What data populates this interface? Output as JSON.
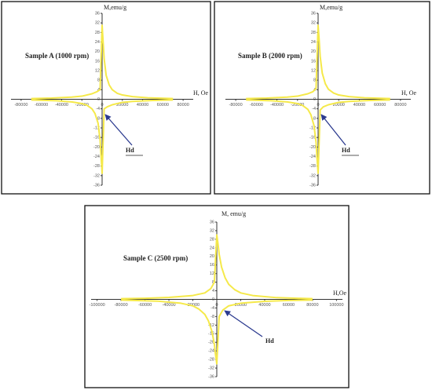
{
  "chart_data": [
    {
      "type": "line",
      "title": "Sample A (1000 rpm)",
      "x_label": "H, Oe",
      "y_label": "M,emu/g",
      "annotation": "Hd",
      "xlim": [
        -90000,
        90000
      ],
      "xticks": [
        -80000,
        -60000,
        -40000,
        -20000,
        0,
        20000,
        40000,
        60000,
        80000
      ],
      "ylim": [
        -36,
        36
      ],
      "yticks": [
        -36,
        -32,
        -28,
        -24,
        -20,
        -16,
        -12,
        -8,
        -4,
        0,
        4,
        8,
        12,
        16,
        20,
        24,
        28,
        32,
        36
      ],
      "series": [
        {
          "color": "#f5e94a",
          "x": [
            -70000,
            -50000,
            -30000,
            -20000,
            -10000,
            -5000,
            -2000,
            0,
            1000,
            2000,
            4000,
            7000,
            10000,
            15000,
            20000,
            30000,
            45000,
            70000
          ],
          "values": [
            0.3,
            0.5,
            0.9,
            1.3,
            2.3,
            3.2,
            4,
            31,
            24,
            17,
            10,
            6,
            4,
            2.5,
            1.8,
            1.1,
            0.6,
            0.3
          ]
        },
        {
          "color": "#f5e94a",
          "x": [
            -70000,
            -45000,
            -30000,
            -20000,
            -15000,
            -10000,
            -7000,
            -4000,
            -2000,
            -1000,
            0,
            2000,
            5000,
            10000,
            20000,
            30000,
            50000,
            70000
          ],
          "values": [
            -0.3,
            -0.6,
            -1.1,
            -1.8,
            -2.5,
            -4,
            -6,
            -10,
            -17,
            -24,
            -31,
            -4,
            -3.2,
            -2.3,
            -1.3,
            -0.9,
            -0.5,
            -0.3
          ]
        }
      ]
    },
    {
      "type": "line",
      "title": "Sample B (2000 rpm)",
      "x_label": "H, Oe",
      "y_label": "M,emu/g",
      "annotation": "Hd",
      "xlim": [
        -90000,
        90000
      ],
      "xticks": [
        -80000,
        -60000,
        -40000,
        -20000,
        0,
        20000,
        40000,
        60000,
        80000
      ],
      "ylim": [
        -36,
        36
      ],
      "yticks": [
        -36,
        -32,
        -28,
        -24,
        -20,
        -16,
        -12,
        -8,
        -4,
        0,
        4,
        8,
        12,
        16,
        20,
        24,
        28,
        32,
        36
      ],
      "series": [
        {
          "color": "#f5e94a",
          "x": [
            -70000,
            -50000,
            -30000,
            -20000,
            -10000,
            -5000,
            -2000,
            0,
            1000,
            2000,
            4000,
            7000,
            10000,
            15000,
            20000,
            30000,
            45000,
            70000
          ],
          "values": [
            0.3,
            0.5,
            0.9,
            1.3,
            2.3,
            3.2,
            4.5,
            31,
            25,
            18,
            11,
            6.5,
            4.2,
            2.6,
            1.8,
            1.1,
            0.6,
            0.3
          ]
        },
        {
          "color": "#f5e94a",
          "x": [
            -70000,
            -45000,
            -30000,
            -20000,
            -15000,
            -10000,
            -7000,
            -4000,
            -2000,
            -1000,
            0,
            2000,
            5000,
            10000,
            20000,
            30000,
            50000,
            70000
          ],
          "values": [
            -0.3,
            -0.6,
            -1.1,
            -1.8,
            -2.6,
            -4.2,
            -6.5,
            -11,
            -18,
            -25,
            -31,
            -4.5,
            -3.2,
            -2.3,
            -1.3,
            -0.9,
            -0.5,
            -0.3
          ]
        }
      ]
    },
    {
      "type": "line",
      "title": "Sample C (2500 rpm)",
      "x_label": "H,Oe",
      "y_label": "M, emu/g",
      "annotation": "Hd",
      "xlim": [
        -105000,
        105000
      ],
      "xticks": [
        -100000,
        -80000,
        -60000,
        -40000,
        -20000,
        0,
        20000,
        40000,
        60000,
        80000,
        100000
      ],
      "ylim": [
        -36,
        36
      ],
      "yticks": [
        -36,
        -32,
        -28,
        -24,
        -20,
        -16,
        -12,
        -8,
        -4,
        0,
        4,
        8,
        12,
        16,
        20,
        24,
        28,
        32,
        36
      ],
      "series": [
        {
          "color": "#f5e94a",
          "x": [
            -80000,
            -60000,
            -40000,
            -20000,
            -10000,
            -5000,
            -2000,
            0,
            1000,
            2000,
            4000,
            7000,
            10000,
            15000,
            20000,
            30000,
            50000,
            80000
          ],
          "values": [
            0.3,
            0.5,
            0.9,
            1.8,
            3,
            5,
            8,
            30,
            26,
            21,
            15,
            10,
            7,
            4.5,
            3,
            1.8,
            0.8,
            0.3
          ]
        },
        {
          "color": "#f5e94a",
          "x": [
            -80000,
            -50000,
            -30000,
            -20000,
            -15000,
            -10000,
            -7000,
            -4000,
            -2000,
            -1000,
            0,
            2000,
            5000,
            10000,
            20000,
            40000,
            60000,
            80000
          ],
          "values": [
            -0.3,
            -0.8,
            -1.8,
            -3,
            -4.5,
            -7,
            -10,
            -15,
            -21,
            -26,
            -30,
            -8,
            -5,
            -3,
            -1.8,
            -0.9,
            -0.5,
            -0.3
          ]
        }
      ]
    }
  ]
}
